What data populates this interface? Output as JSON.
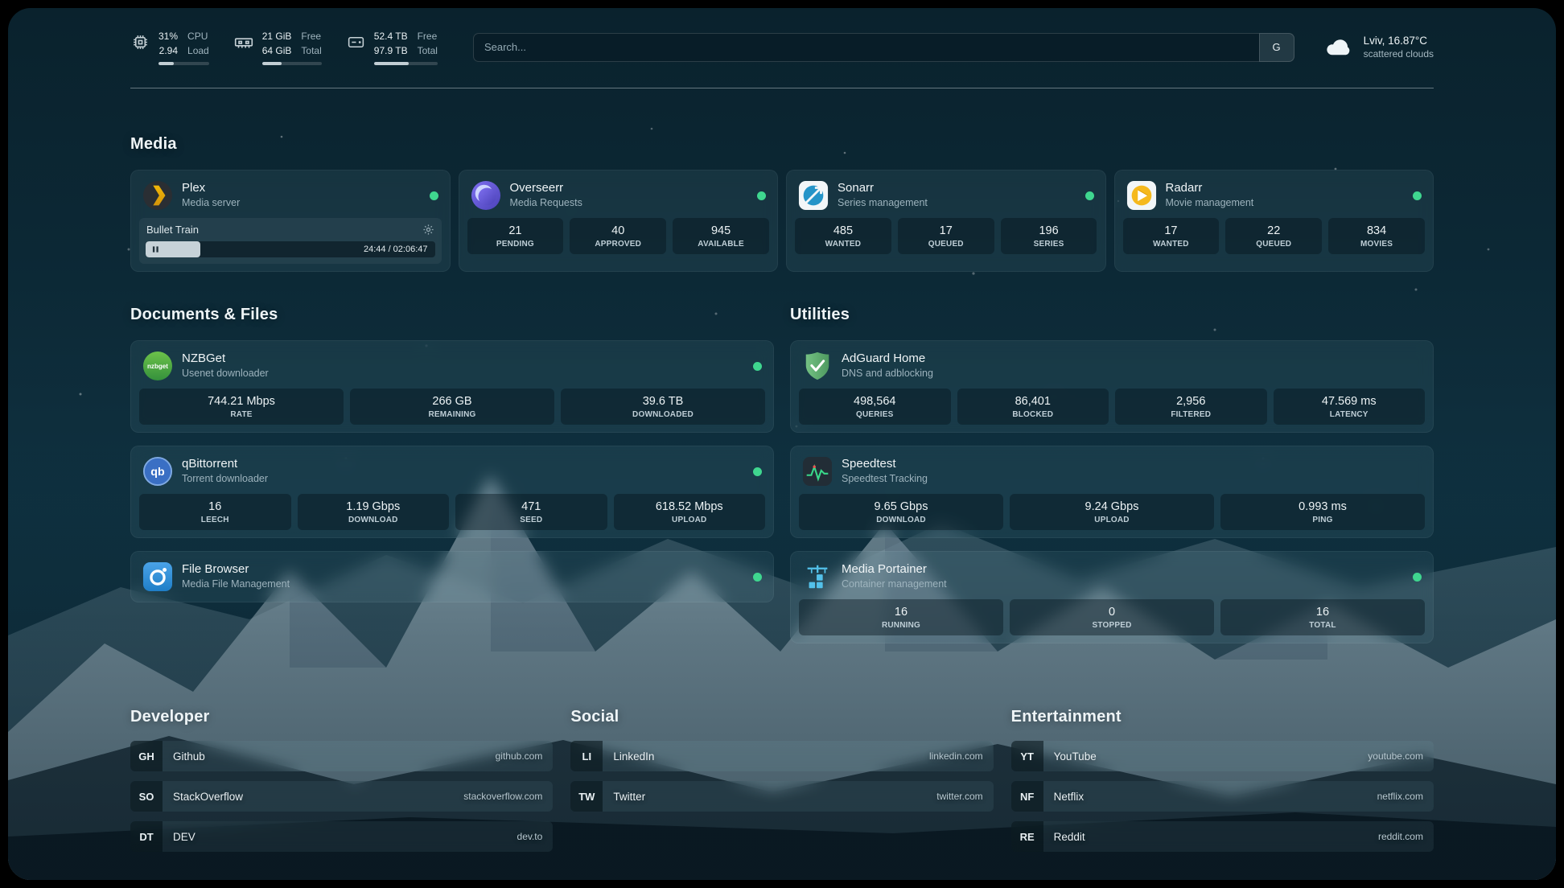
{
  "topbar": {
    "cpu": {
      "value1": "31%",
      "value2": "2.94",
      "label1": "CPU",
      "label2": "Load",
      "progress_percent": 31
    },
    "memory": {
      "value1": "21 GiB",
      "value2": "64 GiB",
      "label1": "Free",
      "label2": "Total",
      "progress_percent": 33
    },
    "disk": {
      "value1": "52.4 TB",
      "value2": "97.9 TB",
      "label1": "Free",
      "label2": "Total",
      "progress_percent": 54
    },
    "search": {
      "placeholder": "Search...",
      "provider_label": "G"
    },
    "weather": {
      "location": "Lviv, 16.87°C",
      "condition": "scattered clouds"
    }
  },
  "sections": {
    "media": {
      "title": "Media",
      "cards": [
        {
          "name": "Plex",
          "subtitle": "Media server",
          "status": "online",
          "now_playing": {
            "title": "Bullet Train",
            "time": "24:44 / 02:06:47",
            "progress_percent": 19
          }
        },
        {
          "name": "Overseerr",
          "subtitle": "Media Requests",
          "status": "online",
          "stats": [
            {
              "value": "21",
              "label": "PENDING"
            },
            {
              "value": "40",
              "label": "APPROVED"
            },
            {
              "value": "945",
              "label": "AVAILABLE"
            }
          ]
        },
        {
          "name": "Sonarr",
          "subtitle": "Series management",
          "status": "online",
          "stats": [
            {
              "value": "485",
              "label": "WANTED"
            },
            {
              "value": "17",
              "label": "QUEUED"
            },
            {
              "value": "196",
              "label": "SERIES"
            }
          ]
        },
        {
          "name": "Radarr",
          "subtitle": "Movie management",
          "status": "online",
          "stats": [
            {
              "value": "17",
              "label": "WANTED"
            },
            {
              "value": "22",
              "label": "QUEUED"
            },
            {
              "value": "834",
              "label": "MOVIES"
            }
          ]
        }
      ]
    },
    "documents": {
      "title": "Documents & Files",
      "cards": [
        {
          "name": "NZBGet",
          "subtitle": "Usenet downloader",
          "status": "online",
          "stats": [
            {
              "value": "744.21 Mbps",
              "label": "RATE"
            },
            {
              "value": "266 GB",
              "label": "REMAINING"
            },
            {
              "value": "39.6 TB",
              "label": "DOWNLOADED"
            }
          ]
        },
        {
          "name": "qBittorrent",
          "subtitle": "Torrent downloader",
          "status": "online",
          "stats": [
            {
              "value": "16",
              "label": "LEECH"
            },
            {
              "value": "1.19 Gbps",
              "label": "DOWNLOAD"
            },
            {
              "value": "471",
              "label": "SEED"
            },
            {
              "value": "618.52 Mbps",
              "label": "UPLOAD"
            }
          ]
        },
        {
          "name": "File Browser",
          "subtitle": "Media File Management",
          "status": "online"
        }
      ]
    },
    "utilities": {
      "title": "Utilities",
      "cards": [
        {
          "name": "AdGuard Home",
          "subtitle": "DNS and adblocking",
          "stats": [
            {
              "value": "498,564",
              "label": "QUERIES"
            },
            {
              "value": "86,401",
              "label": "BLOCKED"
            },
            {
              "value": "2,956",
              "label": "FILTERED"
            },
            {
              "value": "47.569 ms",
              "label": "LATENCY"
            }
          ]
        },
        {
          "name": "Speedtest",
          "subtitle": "Speedtest Tracking",
          "stats": [
            {
              "value": "9.65 Gbps",
              "label": "DOWNLOAD"
            },
            {
              "value": "9.24 Gbps",
              "label": "UPLOAD"
            },
            {
              "value": "0.993 ms",
              "label": "PING"
            }
          ]
        },
        {
          "name": "Media Portainer",
          "subtitle": "Container management",
          "status": "online",
          "stats": [
            {
              "value": "16",
              "label": "RUNNING"
            },
            {
              "value": "0",
              "label": "STOPPED"
            },
            {
              "value": "16",
              "label": "TOTAL"
            }
          ]
        }
      ]
    }
  },
  "bookmarks": {
    "groups": [
      {
        "title": "Developer",
        "items": [
          {
            "abbr": "GH",
            "name": "Github",
            "domain": "github.com"
          },
          {
            "abbr": "SO",
            "name": "StackOverflow",
            "domain": "stackoverflow.com"
          },
          {
            "abbr": "DT",
            "name": "DEV",
            "domain": "dev.to"
          }
        ]
      },
      {
        "title": "Social",
        "items": [
          {
            "abbr": "LI",
            "name": "LinkedIn",
            "domain": "linkedin.com"
          },
          {
            "abbr": "TW",
            "name": "Twitter",
            "domain": "twitter.com"
          }
        ]
      },
      {
        "title": "Entertainment",
        "items": [
          {
            "abbr": "YT",
            "name": "YouTube",
            "domain": "youtube.com"
          },
          {
            "abbr": "NF",
            "name": "Netflix",
            "domain": "netflix.com"
          },
          {
            "abbr": "RE",
            "name": "Reddit",
            "domain": "reddit.com"
          }
        ]
      }
    ]
  },
  "icons": {
    "cpu-icon": "chip outline",
    "memory-icon": "ram module outline",
    "disk-icon": "hard drive outline",
    "weather-icon": "cloud",
    "settings-gear-icon": "gear",
    "pause-icon": "pause bars",
    "status-dot": "green circle"
  },
  "colors": {
    "status-online": "#3fd68f"
  }
}
